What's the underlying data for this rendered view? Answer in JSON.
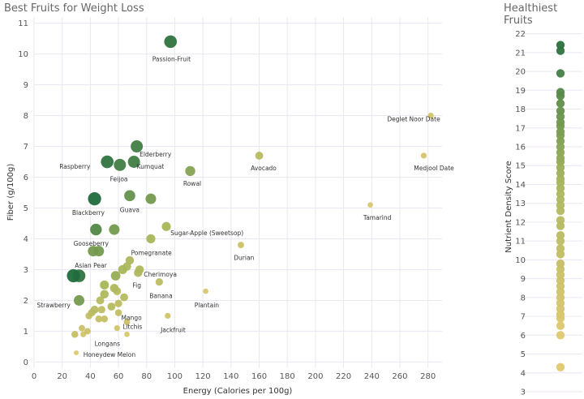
{
  "chart_data": [
    {
      "type": "scatter",
      "title": "Best Fruits for Weight Loss",
      "xlabel": "Energy (Calories per 100g)",
      "ylabel": "Fiber (g/100g)",
      "xlim": [
        0,
        290
      ],
      "ylim": [
        -0.2,
        11.2
      ],
      "xticks": [
        0,
        20,
        40,
        60,
        80,
        100,
        120,
        140,
        160,
        180,
        200,
        220,
        240,
        260,
        280
      ],
      "yticks": [
        0,
        1,
        2,
        3,
        4,
        5,
        6,
        7,
        8,
        9,
        10,
        11
      ],
      "grid": true,
      "points": [
        {
          "name": "Passion-Fruit",
          "x": 97,
          "y": 10.4,
          "score": 21
        },
        {
          "name": "Elderberry",
          "x": 73,
          "y": 7.0,
          "score": 20
        },
        {
          "name": "Kumquat",
          "x": 71,
          "y": 6.5,
          "score": 20
        },
        {
          "name": "Raspberry",
          "x": 52,
          "y": 6.5,
          "score": 21
        },
        {
          "name": "Feijoa",
          "x": 61,
          "y": 6.4,
          "score": 20
        },
        {
          "name": "Blackberry",
          "x": 43,
          "y": 5.3,
          "score": 22
        },
        {
          "name": "Guava",
          "x": 68,
          "y": 5.4,
          "score": 18
        },
        {
          "name": "",
          "x": 83,
          "y": 5.3,
          "score": 17
        },
        {
          "name": "Avocado",
          "x": 160,
          "y": 6.7,
          "score": 12
        },
        {
          "name": "Deglet Noor Date",
          "x": 282,
          "y": 8.0,
          "score": 8
        },
        {
          "name": "Medjool Date",
          "x": 277,
          "y": 6.7,
          "score": 8
        },
        {
          "name": "Rowal",
          "x": 111,
          "y": 6.2,
          "score": 16
        },
        {
          "name": "Tamarind",
          "x": 239,
          "y": 5.1,
          "score": 7
        },
        {
          "name": "Gooseberry",
          "x": 44,
          "y": 4.3,
          "score": 19
        },
        {
          "name": "",
          "x": 57,
          "y": 4.3,
          "score": 17
        },
        {
          "name": "Sugar-Apple (Sweetsop)",
          "x": 94,
          "y": 4.4,
          "score": 14
        },
        {
          "name": "Pomegranate",
          "x": 83,
          "y": 4.0,
          "score": 14
        },
        {
          "name": "Durian",
          "x": 147,
          "y": 3.8,
          "score": 9
        },
        {
          "name": "Asian Pear",
          "x": 42,
          "y": 3.6,
          "score": 17
        },
        {
          "name": "",
          "x": 46,
          "y": 3.6,
          "score": 17
        },
        {
          "name": "Cherimoya",
          "x": 75,
          "y": 3.0,
          "score": 13
        },
        {
          "name": "",
          "x": 68,
          "y": 3.3,
          "score": 13
        },
        {
          "name": "",
          "x": 66,
          "y": 3.1,
          "score": 13
        },
        {
          "name": "",
          "x": 63,
          "y": 3.0,
          "score": 14
        },
        {
          "name": "Fig",
          "x": 74,
          "y": 2.9,
          "score": 13
        },
        {
          "name": "",
          "x": 58,
          "y": 2.8,
          "score": 15
        },
        {
          "name": "Banana",
          "x": 89,
          "y": 2.6,
          "score": 11
        },
        {
          "name": "Plantain",
          "x": 122,
          "y": 2.3,
          "score": 7
        },
        {
          "name": "",
          "x": 28,
          "y": 2.8,
          "score": 22
        },
        {
          "name": "",
          "x": 32,
          "y": 2.8,
          "score": 21
        },
        {
          "name": "",
          "x": 50,
          "y": 2.5,
          "score": 14
        },
        {
          "name": "",
          "x": 57,
          "y": 2.4,
          "score": 13
        },
        {
          "name": "",
          "x": 59,
          "y": 2.3,
          "score": 12
        },
        {
          "name": "",
          "x": 50,
          "y": 2.2,
          "score": 13
        },
        {
          "name": "",
          "x": 64,
          "y": 2.1,
          "score": 12
        },
        {
          "name": "Strawberry",
          "x": 32,
          "y": 2.0,
          "score": 17
        },
        {
          "name": "",
          "x": 47,
          "y": 2.0,
          "score": 12
        },
        {
          "name": "",
          "x": 60,
          "y": 1.9,
          "score": 11
        },
        {
          "name": "",
          "x": 55,
          "y": 1.8,
          "score": 12
        },
        {
          "name": "",
          "x": 43,
          "y": 1.7,
          "score": 12
        },
        {
          "name": "",
          "x": 48,
          "y": 1.7,
          "score": 11
        },
        {
          "name": "",
          "x": 41,
          "y": 1.6,
          "score": 11
        },
        {
          "name": "",
          "x": 39,
          "y": 1.5,
          "score": 10
        },
        {
          "name": "",
          "x": 46,
          "y": 1.4,
          "score": 10
        },
        {
          "name": "",
          "x": 50,
          "y": 1.4,
          "score": 10
        },
        {
          "name": "Mango",
          "x": 60,
          "y": 1.6,
          "score": 10
        },
        {
          "name": "Litchis",
          "x": 66,
          "y": 1.3,
          "score": 9
        },
        {
          "name": "Jackfruit",
          "x": 95,
          "y": 1.5,
          "score": 8
        },
        {
          "name": "",
          "x": 34,
          "y": 1.1,
          "score": 9
        },
        {
          "name": "",
          "x": 38,
          "y": 1.0,
          "score": 9
        },
        {
          "name": "",
          "x": 59,
          "y": 1.1,
          "score": 8
        },
        {
          "name": "Longans",
          "x": 35,
          "y": 0.9,
          "score": 8
        },
        {
          "name": "",
          "x": 29,
          "y": 0.9,
          "score": 10
        },
        {
          "name": "",
          "x": 66,
          "y": 0.9,
          "score": 7
        },
        {
          "name": "Honeydew Melon",
          "x": 30,
          "y": 0.3,
          "score": 6
        }
      ],
      "labels": [
        {
          "text": "Passion-Fruit",
          "x": 84,
          "y": 9.85
        },
        {
          "text": "Elderberry",
          "x": 75,
          "y": 6.75
        },
        {
          "text": "Kumquat",
          "x": 73,
          "y": 6.35
        },
        {
          "text": "Raspberry",
          "x": 18,
          "y": 6.35
        },
        {
          "text": "Feijoa",
          "x": 54,
          "y": 5.95
        },
        {
          "text": "Blackberry",
          "x": 27,
          "y": 4.85
        },
        {
          "text": "Guava",
          "x": 61,
          "y": 4.95
        },
        {
          "text": "Avocado",
          "x": 154,
          "y": 6.3
        },
        {
          "text": "Deglet Noor Date",
          "x": 251,
          "y": 7.9
        },
        {
          "text": "Medjool Date",
          "x": 270,
          "y": 6.3
        },
        {
          "text": "Rowal",
          "x": 106,
          "y": 5.8
        },
        {
          "text": "Tamarind",
          "x": 234,
          "y": 4.7
        },
        {
          "text": "Gooseberry",
          "x": 28,
          "y": 3.85
        },
        {
          "text": "Sugar-Apple (Sweetsop)",
          "x": 97,
          "y": 4.2
        },
        {
          "text": "Pomegranate",
          "x": 69,
          "y": 3.55
        },
        {
          "text": "Durian",
          "x": 142,
          "y": 3.4
        },
        {
          "text": "Asian Pear",
          "x": 29,
          "y": 3.15
        },
        {
          "text": "Cherimoya",
          "x": 78,
          "y": 2.85
        },
        {
          "text": "Fig",
          "x": 70,
          "y": 2.5
        },
        {
          "text": "Banana",
          "x": 82,
          "y": 2.15
        },
        {
          "text": "Plantain",
          "x": 114,
          "y": 1.85
        },
        {
          "text": "Strawberry",
          "x": 2,
          "y": 1.85
        },
        {
          "text": "Mango",
          "x": 62,
          "y": 1.45
        },
        {
          "text": "Litchis",
          "x": 63,
          "y": 1.15
        },
        {
          "text": "Jackfruit",
          "x": 90,
          "y": 1.05
        },
        {
          "text": "Longans",
          "x": 43,
          "y": 0.6
        },
        {
          "text": "Honeydew Melon",
          "x": 35,
          "y": 0.25
        }
      ]
    },
    {
      "type": "scatter",
      "title": "Healthiest Fruits",
      "ylabel": "Nutrient Density Score",
      "ylim": [
        3,
        22.5
      ],
      "yticks": [
        3,
        4,
        5,
        6,
        7,
        8,
        9,
        10,
        11,
        12,
        13,
        14,
        15,
        16,
        17,
        18,
        19,
        20,
        21,
        22
      ],
      "grid": true,
      "values": [
        21.4,
        21.1,
        19.9,
        18.9,
        18.7,
        18.3,
        17.9,
        17.6,
        17.3,
        17.1,
        16.8,
        16.6,
        16.3,
        16.0,
        15.7,
        15.4,
        15.2,
        14.9,
        14.6,
        14.3,
        14.1,
        13.8,
        13.5,
        13.2,
        12.9,
        12.6,
        12.1,
        11.8,
        11.3,
        11.0,
        10.6,
        10.3,
        9.8,
        9.5,
        9.2,
        8.9,
        8.6,
        8.3,
        8.0,
        7.7,
        7.4,
        7.1,
        6.9,
        6.5,
        6.0,
        4.3
      ]
    }
  ],
  "colors": {
    "low": "#e0c86e",
    "mid": "#a8b65a",
    "high": "#1f6b3c",
    "grid": "#ece6f2"
  }
}
